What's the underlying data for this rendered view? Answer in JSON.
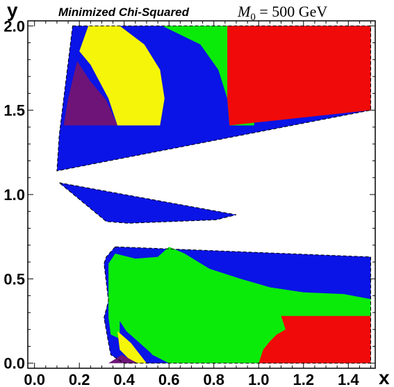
{
  "chart_data": {
    "type": "heatmap",
    "title": "Minimized Chi-Squared",
    "subtitle_parts": [
      "M",
      "0",
      " = 500 GeV"
    ],
    "xlabel": "x",
    "ylabel": "y",
    "xlim": [
      -0.03,
      1.52
    ],
    "ylim": [
      -0.03,
      2.03
    ],
    "x_ticks": [
      "0.0",
      "0.2",
      "0.4",
      "0.6",
      "0.8",
      "1.0",
      "1.2",
      "1.4"
    ],
    "x_tick_values": [
      0.0,
      0.2,
      0.4,
      0.6,
      0.8,
      1.0,
      1.2,
      1.4
    ],
    "y_ticks": [
      "0.0",
      "0.5",
      "1.0",
      "1.5",
      "2.0"
    ],
    "y_tick_values": [
      0.0,
      0.5,
      1.0,
      1.5,
      2.0
    ],
    "grid": false,
    "colors": {
      "blue": "#0a14e6",
      "green": "#0aeb0a",
      "red": "#f00a0a",
      "yellow": "#f5f50a",
      "purple": "#6e1478",
      "boundary": "#000000"
    },
    "regions": [
      {
        "color": "blue",
        "points": [
          [
            0.17,
            2.0
          ],
          [
            1.5,
            2.0
          ],
          [
            1.5,
            1.5
          ],
          [
            0.1,
            1.14
          ],
          [
            0.11,
            1.35
          ],
          [
            0.17,
            2.0
          ]
        ]
      },
      {
        "color": "green",
        "points": [
          [
            0.57,
            2.0
          ],
          [
            0.98,
            2.0
          ],
          [
            0.98,
            1.41
          ],
          [
            0.87,
            1.41
          ],
          [
            0.86,
            1.57
          ],
          [
            0.82,
            1.74
          ],
          [
            0.74,
            1.89
          ],
          [
            0.57,
            2.0
          ]
        ]
      },
      {
        "color": "red",
        "points": [
          [
            0.86,
            2.0
          ],
          [
            1.5,
            2.0
          ],
          [
            1.5,
            1.5
          ],
          [
            0.87,
            1.41
          ],
          [
            0.86,
            1.57
          ],
          [
            0.86,
            2.0
          ]
        ]
      },
      {
        "color": "yellow",
        "points": [
          [
            0.24,
            2.0
          ],
          [
            0.38,
            2.0
          ],
          [
            0.49,
            1.89
          ],
          [
            0.56,
            1.74
          ],
          [
            0.58,
            1.57
          ],
          [
            0.56,
            1.41
          ],
          [
            0.37,
            1.41
          ],
          [
            0.33,
            1.57
          ],
          [
            0.25,
            1.77
          ],
          [
            0.2,
            1.85
          ],
          [
            0.24,
            2.0
          ]
        ]
      },
      {
        "color": "purple",
        "points": [
          [
            0.19,
            1.79
          ],
          [
            0.25,
            1.67
          ],
          [
            0.32,
            1.56
          ],
          [
            0.37,
            1.41
          ],
          [
            0.13,
            1.41
          ],
          [
            0.15,
            1.57
          ],
          [
            0.19,
            1.79
          ]
        ]
      },
      {
        "color": "blue",
        "points": [
          [
            0.11,
            1.07
          ],
          [
            0.9,
            0.88
          ],
          [
            0.81,
            0.85
          ],
          [
            0.42,
            0.83
          ],
          [
            0.32,
            0.84
          ],
          [
            0.11,
            1.07
          ]
        ]
      },
      {
        "color": "blue",
        "points": [
          [
            0.36,
            0.69
          ],
          [
            1.5,
            0.63
          ],
          [
            1.5,
            0.0
          ],
          [
            0.4,
            0.0
          ],
          [
            0.34,
            0.05
          ],
          [
            0.33,
            0.12
          ],
          [
            0.31,
            0.27
          ],
          [
            0.33,
            0.37
          ],
          [
            0.31,
            0.59
          ],
          [
            0.32,
            0.63
          ],
          [
            0.36,
            0.69
          ]
        ]
      },
      {
        "color": "green",
        "points": [
          [
            0.33,
            0.59
          ],
          [
            0.36,
            0.65
          ],
          [
            0.45,
            0.62
          ],
          [
            0.55,
            0.63
          ],
          [
            0.6,
            0.69
          ],
          [
            0.67,
            0.65
          ],
          [
            0.78,
            0.56
          ],
          [
            0.92,
            0.5
          ],
          [
            1.05,
            0.45
          ],
          [
            1.2,
            0.42
          ],
          [
            1.38,
            0.41
          ],
          [
            1.5,
            0.38
          ],
          [
            1.5,
            0.21
          ],
          [
            1.0,
            0.0
          ],
          [
            0.6,
            0.0
          ],
          [
            0.42,
            0.12
          ],
          [
            0.34,
            0.17
          ],
          [
            0.33,
            0.27
          ],
          [
            0.33,
            0.37
          ],
          [
            0.33,
            0.59
          ]
        ]
      },
      {
        "color": "red",
        "points": [
          [
            1.1,
            0.28
          ],
          [
            1.5,
            0.28
          ],
          [
            1.5,
            0.0
          ],
          [
            1.0,
            0.0
          ],
          [
            1.02,
            0.08
          ],
          [
            1.05,
            0.13
          ],
          [
            1.08,
            0.17
          ],
          [
            1.12,
            0.2
          ],
          [
            1.1,
            0.28
          ]
        ]
      },
      {
        "color": "blue",
        "points": [
          [
            0.38,
            0.25
          ],
          [
            0.41,
            0.19
          ],
          [
            0.52,
            0.06
          ],
          [
            0.55,
            0.0
          ],
          [
            0.43,
            0.0
          ],
          [
            0.38,
            0.14
          ],
          [
            0.38,
            0.25
          ]
        ]
      },
      {
        "color": "yellow",
        "points": [
          [
            0.37,
            0.19
          ],
          [
            0.43,
            0.12
          ],
          [
            0.5,
            0.0
          ],
          [
            0.44,
            0.0
          ],
          [
            0.38,
            0.08
          ],
          [
            0.37,
            0.19
          ]
        ]
      },
      {
        "color": "purple",
        "points": [
          [
            0.33,
            0.0
          ],
          [
            0.46,
            0.0
          ],
          [
            0.39,
            0.05
          ],
          [
            0.33,
            0.0
          ]
        ]
      }
    ]
  }
}
